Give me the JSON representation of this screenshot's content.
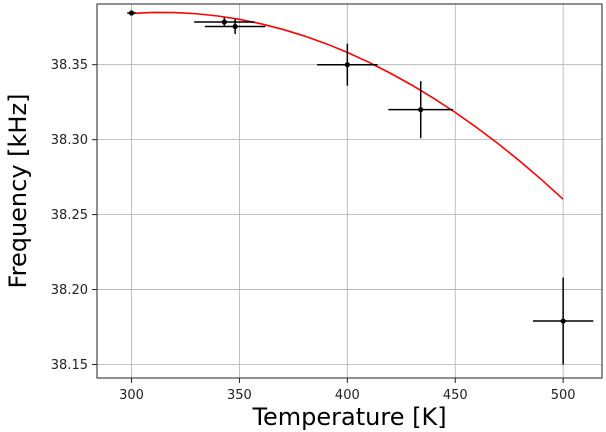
{
  "chart_data": {
    "type": "scatter",
    "title": "",
    "xlabel": "Temperature [K]",
    "ylabel": "Frequency [kHz]",
    "xlim": [
      284,
      518
    ],
    "ylim": [
      38.141,
      38.3905
    ],
    "x_ticks": [
      300,
      350,
      400,
      450,
      500
    ],
    "y_ticks": [
      38.15,
      38.2,
      38.25,
      38.3,
      38.35
    ],
    "x_tick_labels": [
      "300",
      "350",
      "400",
      "450",
      "500"
    ],
    "y_tick_labels": [
      "38.15",
      "38.20",
      "38.25",
      "38.30",
      "38.35"
    ],
    "grid": true,
    "series": [
      {
        "kind": "errorbar",
        "color": "#000000",
        "points": [
          {
            "x": 300,
            "y": 38.3845,
            "xerr": 2,
            "yerr": 0.001
          },
          {
            "x": 343,
            "y": 38.3785,
            "xerr": 14,
            "yerr": 0.003
          },
          {
            "x": 348,
            "y": 38.3755,
            "xerr": 14,
            "yerr": 0.005
          },
          {
            "x": 400,
            "y": 38.35,
            "xerr": 14,
            "yerr": 0.014
          },
          {
            "x": 434,
            "y": 38.32,
            "xerr": 15,
            "yerr": 0.019
          },
          {
            "x": 500,
            "y": 38.179,
            "xerr": 14,
            "yerr": 0.029
          }
        ]
      },
      {
        "kind": "fit-line",
        "color": "#ff0000",
        "x": [
          300,
          310,
          320,
          330,
          340,
          350,
          360,
          370,
          380,
          390,
          400,
          410,
          420,
          430,
          440,
          450,
          460,
          470,
          480,
          490,
          500
        ],
        "y": [
          38.3842,
          38.3849,
          38.3848,
          38.384,
          38.3825,
          38.3803,
          38.3773,
          38.3736,
          38.3692,
          38.3641,
          38.3582,
          38.3516,
          38.3443,
          38.3363,
          38.3276,
          38.3182,
          38.308,
          38.2972,
          38.2856,
          38.2733,
          38.2603
        ]
      }
    ]
  },
  "colors": {
    "axes": "#222222",
    "grid": "#b0b0b0",
    "background": "#ffffff"
  }
}
